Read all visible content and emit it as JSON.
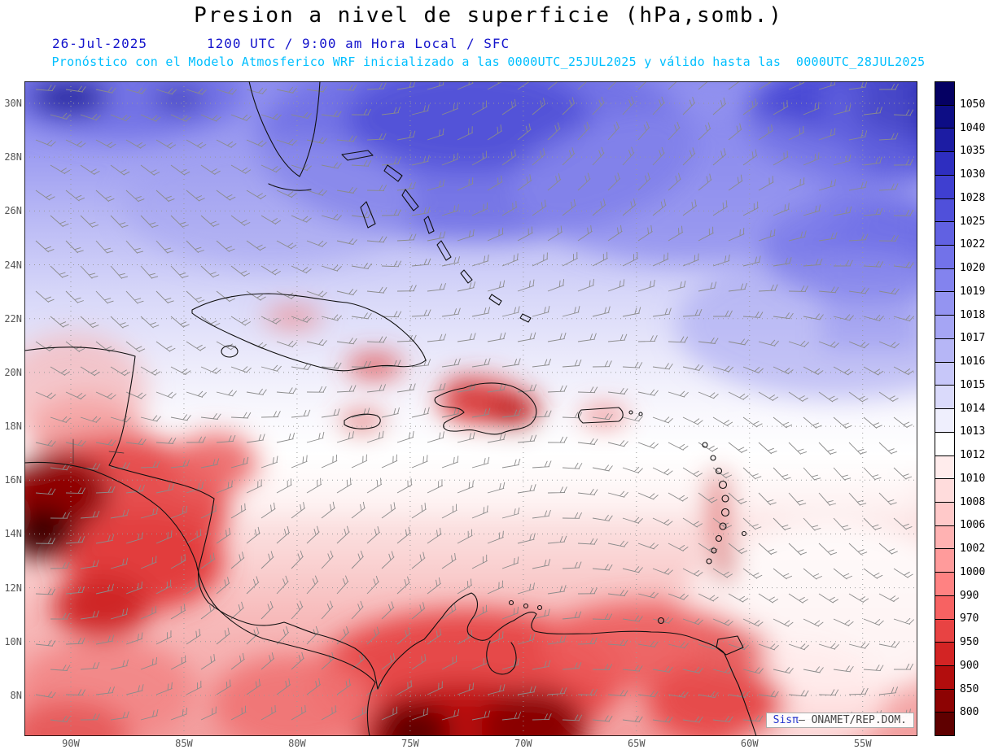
{
  "header": {
    "title": "Presion a nivel de superficie (hPa,somb.)",
    "date": "26-Jul-2025",
    "time_info": "1200 UTC / 9:00 am Hora Local / SFC",
    "forecast_line": "Pronóstico con el Modelo Atmosferico WRF inicializado a las 0000UTC_25JUL2025 y válido hasta las  0000UTC_28JUL2025"
  },
  "map": {
    "lat_labels": [
      "30N",
      "28N",
      "26N",
      "24N",
      "22N",
      "20N",
      "18N",
      "16N",
      "14N",
      "12N",
      "10N",
      "8N"
    ],
    "lon_labels": [
      "90W",
      "85W",
      "80W",
      "75W",
      "70W",
      "65W",
      "60W",
      "55W"
    ]
  },
  "colorbar": {
    "unit": "hPa",
    "tick_values": [
      "1050",
      "1040",
      "1035",
      "1030",
      "1028",
      "1025",
      "1022",
      "1020",
      "1019",
      "1018",
      "1017",
      "1016",
      "1015",
      "1014",
      "1013",
      "1012",
      "1010",
      "1008",
      "1006",
      "1002",
      "1000",
      "990",
      "970",
      "950",
      "900",
      "850",
      "800"
    ],
    "band_colors": [
      "#050063",
      "#0d0d85",
      "#1c1ca3",
      "#2e2ec0",
      "#3f3fd0",
      "#5050da",
      "#6161e2",
      "#7272e9",
      "#8383ee",
      "#9494f1",
      "#a5a5f4",
      "#b6b6f6",
      "#c7c7f9",
      "#dadafb",
      "#efeffd",
      "#ffffff",
      "#ffecec",
      "#ffdcdc",
      "#ffc9c9",
      "#ffb2b2",
      "#ff9b9b",
      "#ff8282",
      "#f76262",
      "#e84343",
      "#d32424",
      "#b20d0d",
      "#8d0303",
      "#5f0000"
    ]
  },
  "credit": {
    "brand": "Sisπ",
    "text": "— ONAMET/REP.DOM."
  },
  "colors": {
    "header_blue": "#1414cc",
    "header_cyan": "#00bfff",
    "barb_gray": "#8b8b8b",
    "high_pressure_blue": "#5050da",
    "low_pressure_red": "#d32424"
  }
}
